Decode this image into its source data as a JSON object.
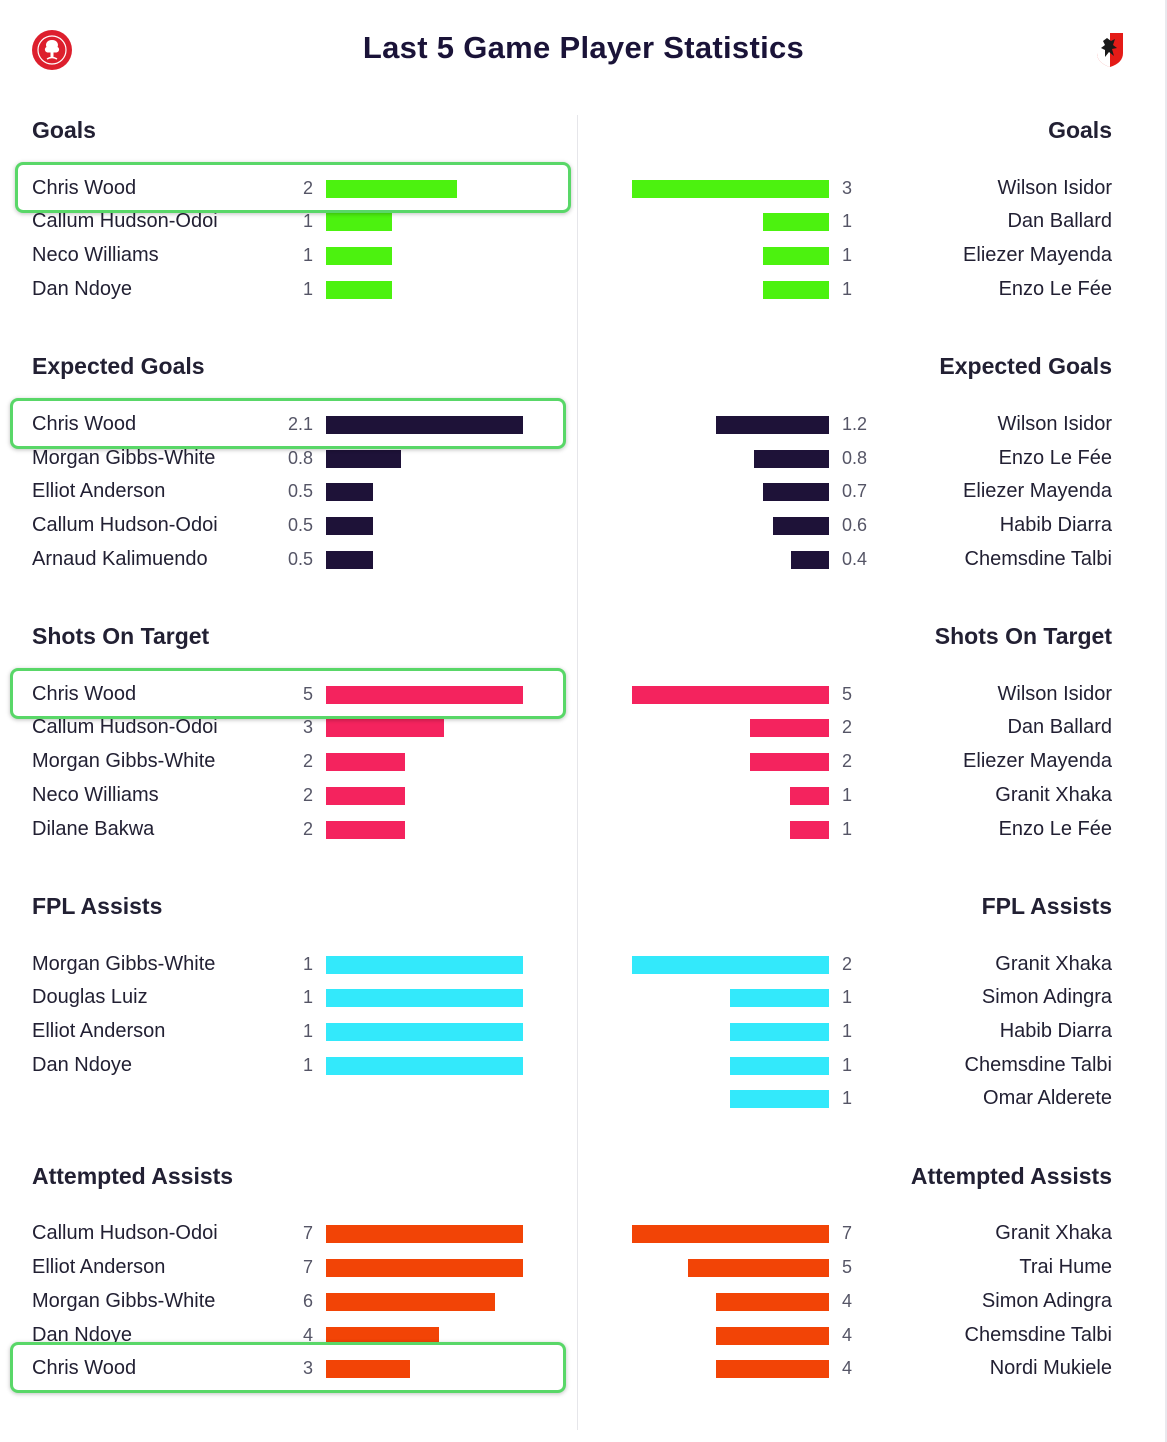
{
  "title": "Last 5 Game Player Statistics",
  "chart_data": {
    "type": "bar",
    "title": "Last 5 Game Player Statistics",
    "sections": [
      {
        "title": "Goals",
        "color": "#4cf20f",
        "max": 3,
        "left": [
          {
            "name": "Chris Wood",
            "value": 2,
            "label": "2"
          },
          {
            "name": "Callum Hudson-Odoi",
            "value": 1,
            "label": "1"
          },
          {
            "name": "Neco Williams",
            "value": 1,
            "label": "1"
          },
          {
            "name": "Dan Ndoye",
            "value": 1,
            "label": "1"
          }
        ],
        "right": [
          {
            "name": "Wilson Isidor",
            "value": 3,
            "label": "3"
          },
          {
            "name": "Dan Ballard",
            "value": 1,
            "label": "1"
          },
          {
            "name": "Eliezer Mayenda",
            "value": 1,
            "label": "1"
          },
          {
            "name": "Enzo Le Fée",
            "value": 1,
            "label": "1"
          }
        ]
      },
      {
        "title": "Expected Goals",
        "color": "#1e1238",
        "max": 2.1,
        "left": [
          {
            "name": "Chris Wood",
            "value": 2.1,
            "label": "2.1"
          },
          {
            "name": "Morgan Gibbs-White",
            "value": 0.8,
            "label": "0.8"
          },
          {
            "name": "Elliot Anderson",
            "value": 0.5,
            "label": "0.5"
          },
          {
            "name": "Callum Hudson-Odoi",
            "value": 0.5,
            "label": "0.5"
          },
          {
            "name": "Arnaud Kalimuendo",
            "value": 0.5,
            "label": "0.5"
          }
        ],
        "right": [
          {
            "name": "Wilson Isidor",
            "value": 1.2,
            "label": "1.2"
          },
          {
            "name": "Enzo Le Fée",
            "value": 0.8,
            "label": "0.8"
          },
          {
            "name": "Eliezer Mayenda",
            "value": 0.7,
            "label": "0.7"
          },
          {
            "name": "Habib Diarra",
            "value": 0.6,
            "label": "0.6"
          },
          {
            "name": "Chemsdine Talbi",
            "value": 0.4,
            "label": "0.4"
          }
        ]
      },
      {
        "title": "Shots On Target",
        "color": "#f4235e",
        "max": 5,
        "left": [
          {
            "name": "Chris Wood",
            "value": 5,
            "label": "5"
          },
          {
            "name": "Callum Hudson-Odoi",
            "value": 3,
            "label": "3"
          },
          {
            "name": "Morgan Gibbs-White",
            "value": 2,
            "label": "2"
          },
          {
            "name": "Neco Williams",
            "value": 2,
            "label": "2"
          },
          {
            "name": "Dilane Bakwa",
            "value": 2,
            "label": "2"
          }
        ],
        "right": [
          {
            "name": "Wilson Isidor",
            "value": 5,
            "label": "5"
          },
          {
            "name": "Dan Ballard",
            "value": 2,
            "label": "2"
          },
          {
            "name": "Eliezer Mayenda",
            "value": 2,
            "label": "2"
          },
          {
            "name": "Granit Xhaka",
            "value": 1,
            "label": "1"
          },
          {
            "name": "Enzo Le Fée",
            "value": 1,
            "label": "1"
          }
        ]
      },
      {
        "title": "FPL Assists",
        "color": "#33e9fb",
        "max": 1,
        "left": [
          {
            "name": "Morgan Gibbs-White",
            "value": 1,
            "label": "1"
          },
          {
            "name": "Douglas Luiz",
            "value": 1,
            "label": "1"
          },
          {
            "name": "Elliot Anderson",
            "value": 1,
            "label": "1"
          },
          {
            "name": "Dan Ndoye",
            "value": 1,
            "label": "1"
          }
        ],
        "right_max": 2,
        "right": [
          {
            "name": "Granit Xhaka",
            "value": 2,
            "label": "2"
          },
          {
            "name": "Simon Adingra",
            "value": 1,
            "label": "1"
          },
          {
            "name": "Habib Diarra",
            "value": 1,
            "label": "1"
          },
          {
            "name": "Chemsdine Talbi",
            "value": 1,
            "label": "1"
          },
          {
            "name": "Omar Alderete",
            "value": 1,
            "label": "1"
          }
        ]
      },
      {
        "title": "Attempted Assists",
        "color": "#f24406",
        "max": 7,
        "left": [
          {
            "name": "Callum Hudson-Odoi",
            "value": 7,
            "label": "7"
          },
          {
            "name": "Elliot Anderson",
            "value": 7,
            "label": "7"
          },
          {
            "name": "Morgan Gibbs-White",
            "value": 6,
            "label": "6"
          },
          {
            "name": "Dan Ndoye",
            "value": 4,
            "label": "4"
          },
          {
            "name": "Chris Wood",
            "value": 3,
            "label": "3"
          }
        ],
        "right": [
          {
            "name": "Granit Xhaka",
            "value": 7,
            "label": "7"
          },
          {
            "name": "Trai Hume",
            "value": 5,
            "label": "5"
          },
          {
            "name": "Simon Adingra",
            "value": 4,
            "label": "4"
          },
          {
            "name": "Chemsdine Talbi",
            "value": 4,
            "label": "4"
          },
          {
            "name": "Nordi Mukiele",
            "value": 4,
            "label": "4"
          }
        ]
      }
    ],
    "highlighted_player": "Chris Wood",
    "highlight_color": "#59d768"
  }
}
